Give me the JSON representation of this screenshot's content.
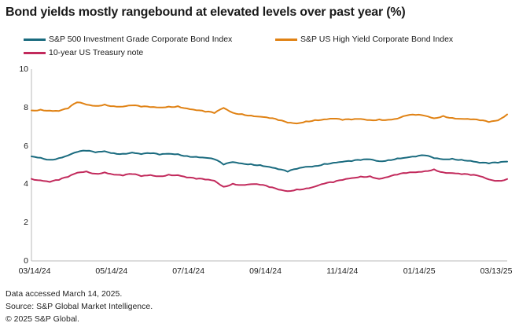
{
  "title": "Bond yields mostly rangebound at elevated levels over past year (%)",
  "legend": [
    {
      "label": "S&P 500 Investment Grade Corporate Bond Index",
      "color": "#1A6B7F"
    },
    {
      "label": "S&P US High Yield Corporate Bond Index",
      "color": "#E08214"
    },
    {
      "label": "10-year US Treasury note",
      "color": "#C22A5C"
    }
  ],
  "footer": {
    "line1": "Data accessed March 14, 2025.",
    "line2": "Source: S&P Global Market Intelligence.",
    "line3": "© 2025 S&P Global."
  },
  "chart_data": {
    "type": "line",
    "title": "Bond yields mostly rangebound at elevated levels over past year (%)",
    "unit": "percent yield",
    "xlabel": "",
    "ylabel": "",
    "ylim": [
      0,
      10
    ],
    "y_ticks": [
      0,
      2,
      4,
      6,
      8,
      10
    ],
    "grid": false,
    "legend_position": "top-left, two rows",
    "x_tick_labels": [
      "03/14/24",
      "05/14/24",
      "07/14/24",
      "09/14/24",
      "11/14/24",
      "01/14/25",
      "03/13/25"
    ],
    "x_range": [
      "03/14/24",
      "03/13/25"
    ],
    "sampling": "weekly, 53 points per series from 03/14/24 through 03/13/25",
    "series": [
      {
        "name": "S&P 500 Investment Grade Corporate Bond Index",
        "color": "#1A6B7F",
        "values": [
          5.45,
          5.38,
          5.28,
          5.36,
          5.5,
          5.68,
          5.74,
          5.66,
          5.72,
          5.62,
          5.59,
          5.65,
          5.57,
          5.61,
          5.54,
          5.59,
          5.57,
          5.47,
          5.43,
          5.38,
          5.3,
          5.02,
          5.15,
          5.08,
          5.05,
          5.0,
          4.9,
          4.78,
          4.65,
          4.8,
          4.91,
          4.95,
          5.06,
          5.12,
          5.17,
          5.2,
          5.26,
          5.3,
          5.2,
          5.26,
          5.35,
          5.39,
          5.44,
          5.5,
          5.36,
          5.3,
          5.33,
          5.28,
          5.22,
          5.12,
          5.08,
          5.12,
          5.18
        ]
      },
      {
        "name": "S&P US High Yield Corporate Bond Index",
        "color": "#E08214",
        "values": [
          7.85,
          7.89,
          7.84,
          7.82,
          7.95,
          8.27,
          8.15,
          8.08,
          8.16,
          8.07,
          8.05,
          8.11,
          8.04,
          8.02,
          8.0,
          8.05,
          8.07,
          7.95,
          7.86,
          7.78,
          7.71,
          7.98,
          7.73,
          7.66,
          7.58,
          7.52,
          7.45,
          7.34,
          7.21,
          7.17,
          7.28,
          7.35,
          7.38,
          7.42,
          7.35,
          7.37,
          7.4,
          7.35,
          7.38,
          7.36,
          7.42,
          7.58,
          7.61,
          7.57,
          7.44,
          7.56,
          7.46,
          7.41,
          7.38,
          7.33,
          7.24,
          7.33,
          7.64
        ]
      },
      {
        "name": "10-year US Treasury note",
        "color": "#C22A5C",
        "values": [
          4.28,
          4.2,
          4.12,
          4.22,
          4.38,
          4.6,
          4.67,
          4.55,
          4.62,
          4.5,
          4.45,
          4.53,
          4.42,
          4.48,
          4.42,
          4.5,
          4.47,
          4.35,
          4.28,
          4.24,
          4.18,
          3.87,
          4.03,
          3.96,
          4.0,
          3.97,
          3.85,
          3.72,
          3.64,
          3.73,
          3.78,
          3.88,
          4.03,
          4.1,
          4.22,
          4.32,
          4.4,
          4.42,
          4.28,
          4.38,
          4.5,
          4.58,
          4.62,
          4.68,
          4.78,
          4.62,
          4.58,
          4.52,
          4.48,
          4.42,
          4.25,
          4.18,
          4.27
        ]
      }
    ]
  }
}
